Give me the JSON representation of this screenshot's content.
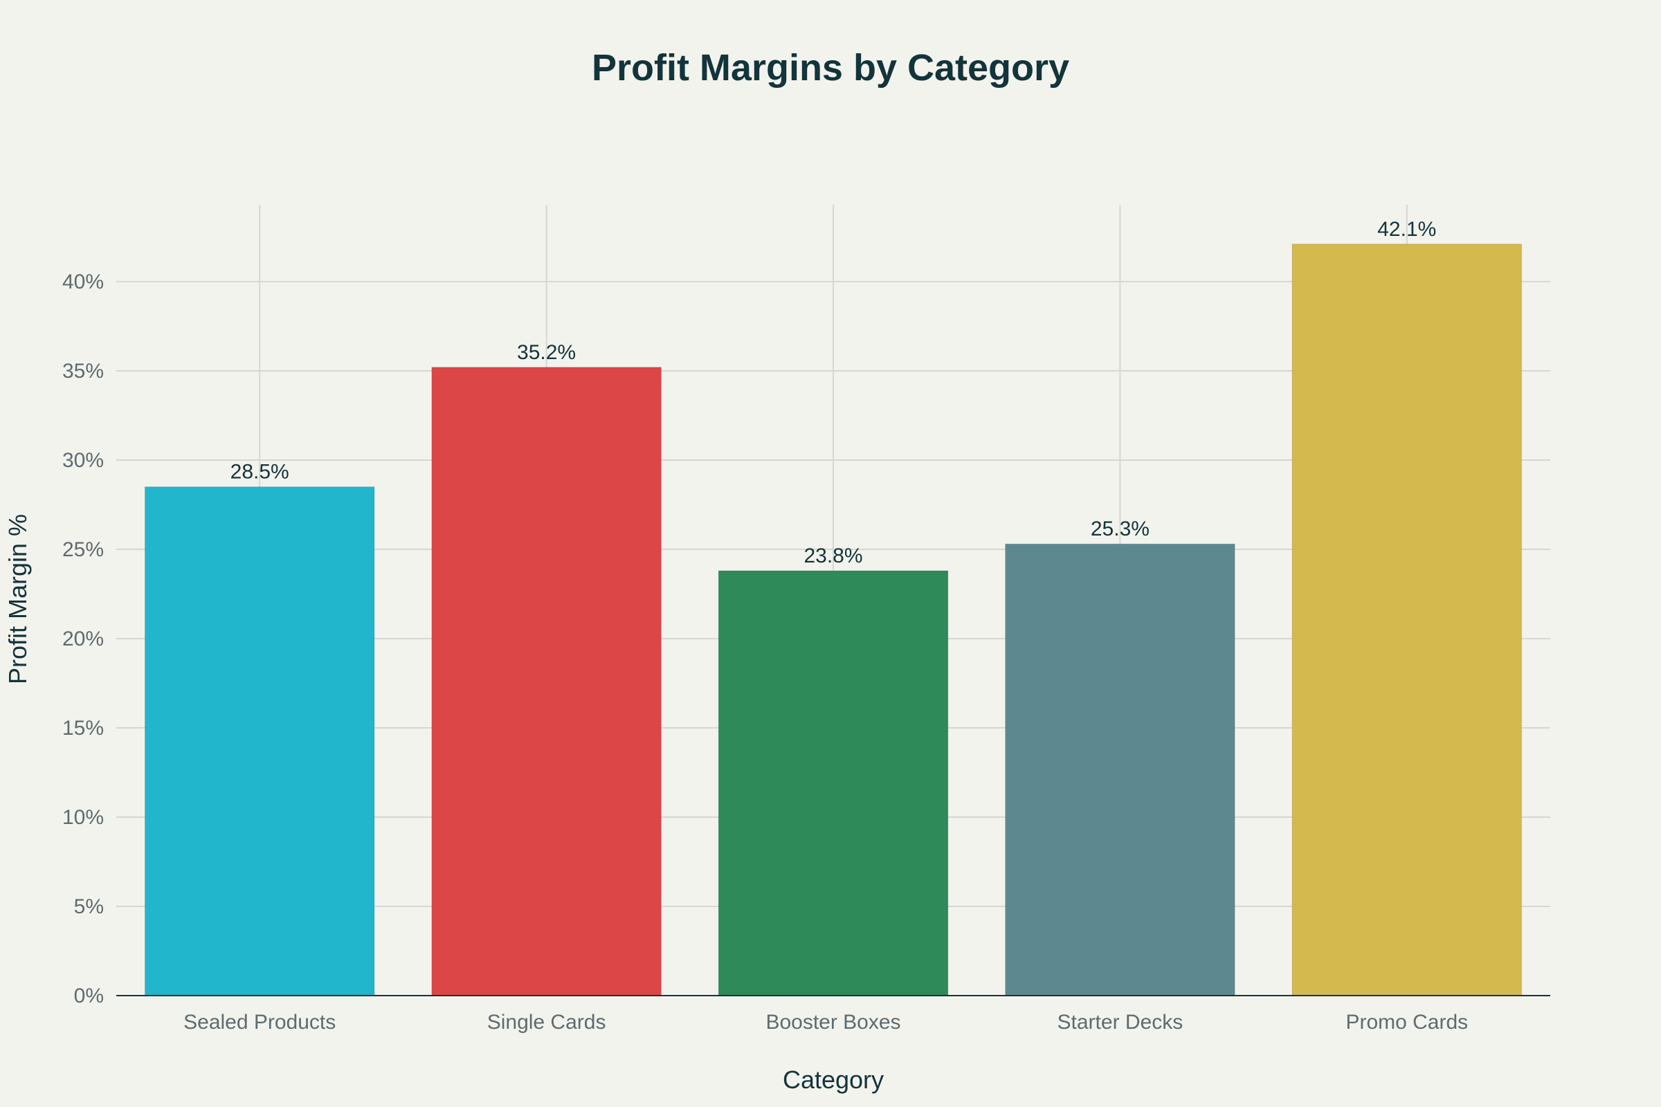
{
  "chart_data": {
    "type": "bar",
    "title": "Profit Margins by Category",
    "xlabel": "Category",
    "ylabel": "Profit Margin %",
    "categories": [
      "Sealed Products",
      "Single Cards",
      "Booster Boxes",
      "Starter Decks",
      "Promo Cards"
    ],
    "values": [
      28.5,
      35.2,
      23.8,
      25.3,
      42.1
    ],
    "value_labels": [
      "28.5%",
      "35.2%",
      "23.8%",
      "25.3%",
      "42.1%"
    ],
    "colors": [
      "#21B6CC",
      "#DC4646",
      "#2E8A58",
      "#5E8890",
      "#D3B94E"
    ],
    "ylim": [
      0,
      44.3
    ],
    "yticks": [
      0,
      5,
      10,
      15,
      20,
      25,
      30,
      35,
      40
    ],
    "ytick_labels": [
      "0%",
      "5%",
      "10%",
      "15%",
      "20%",
      "25%",
      "30%",
      "35%",
      "40%"
    ],
    "grid": true,
    "legend": "none"
  }
}
